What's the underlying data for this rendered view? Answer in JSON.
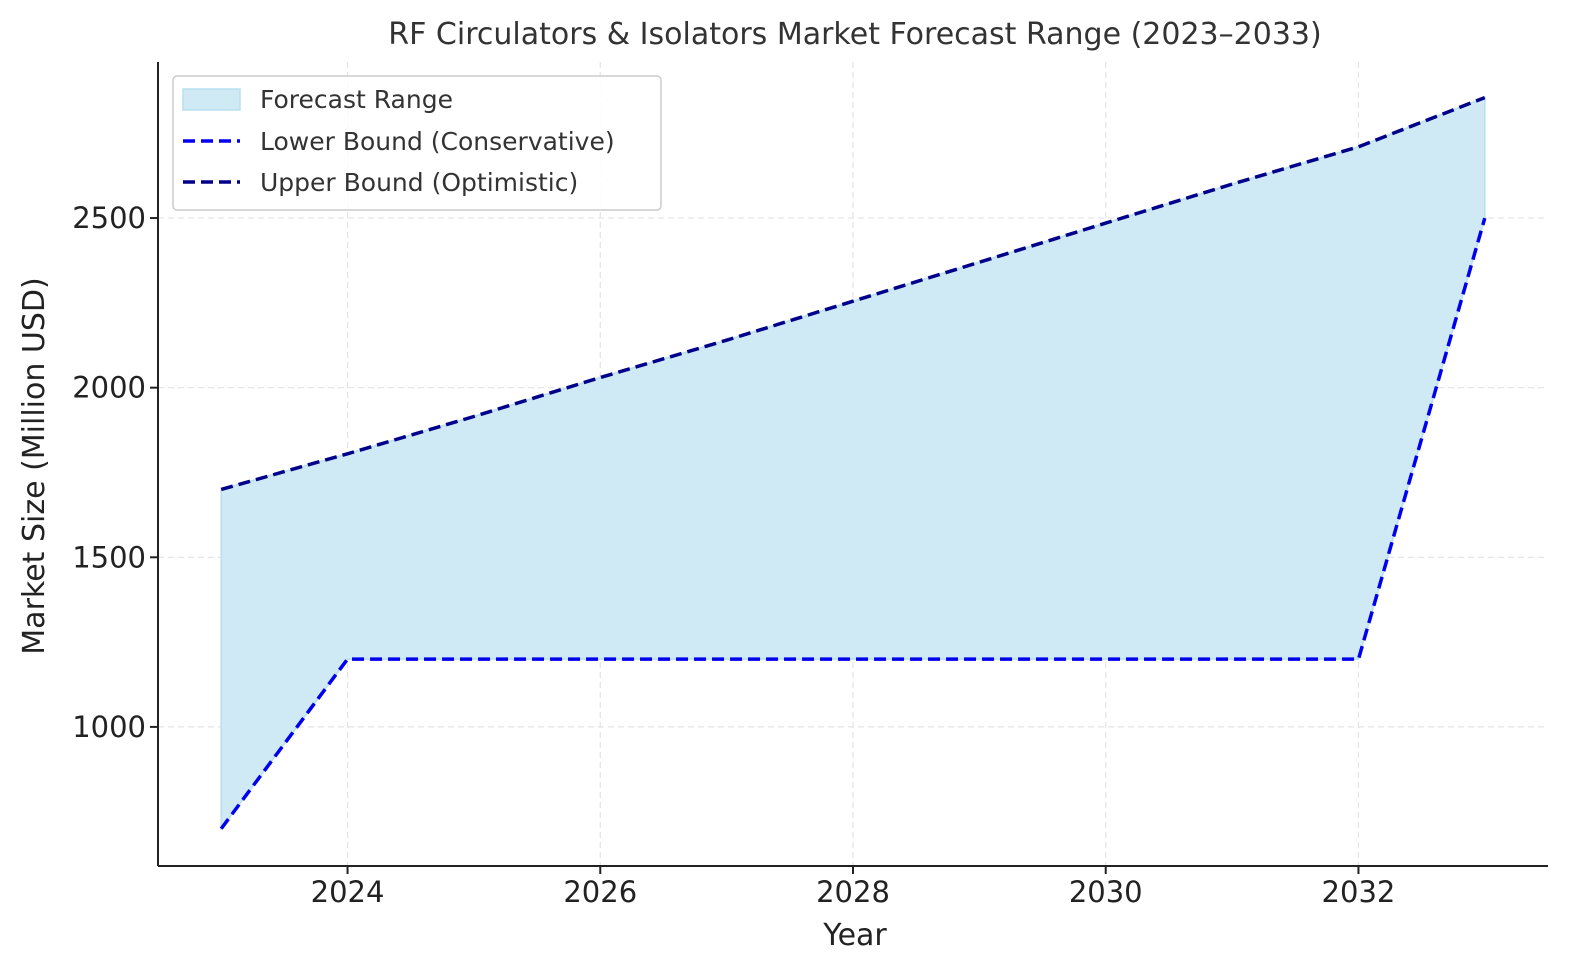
{
  "chart_data": {
    "type": "area",
    "title": "RF Circulators & Isolators Market Forecast Range (2023–2033)",
    "xlabel": "Year",
    "ylabel": "Market Size (Million USD)",
    "x": [
      2023,
      2024,
      2025,
      2026,
      2027,
      2028,
      2029,
      2030,
      2031,
      2032,
      2033
    ],
    "xlim": [
      2022.5,
      2033.5
    ],
    "ylim": [
      590,
      2960
    ],
    "x_ticks": [
      2024,
      2026,
      2028,
      2030,
      2032
    ],
    "y_ticks": [
      1000,
      1500,
      2000,
      2500
    ],
    "grid": true,
    "legend_position": "top-left",
    "series": [
      {
        "name": "Forecast Range",
        "kind": "band",
        "color": "#cfe9f5",
        "edge_color": "#b8dff0"
      },
      {
        "name": "Lower Bound (Conservative)",
        "kind": "line",
        "style": "dashed",
        "color": "#0000ee",
        "values": [
          700,
          1200,
          1200,
          1200,
          1200,
          1200,
          1200,
          1200,
          1200,
          1200,
          2500
        ]
      },
      {
        "name": "Upper Bound (Optimistic)",
        "kind": "line",
        "style": "dashed",
        "color": "#00008b",
        "values": [
          1700,
          1805,
          1915,
          2030,
          2140,
          2255,
          2370,
          2485,
          2600,
          2710,
          2855
        ]
      }
    ]
  }
}
